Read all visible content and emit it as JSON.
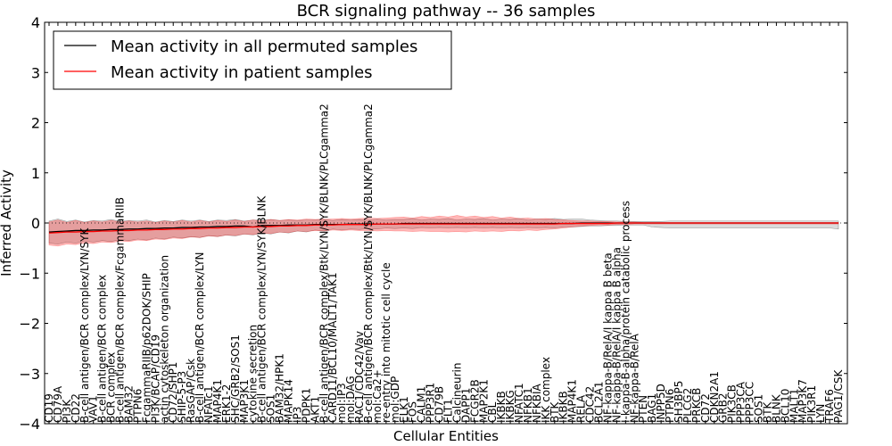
{
  "chart_data": {
    "type": "line",
    "title": "BCR signaling pathway -- 36 samples",
    "xlabel": "Cellular Entities",
    "ylabel": "Inferred Activity",
    "ylim": [
      -4,
      4
    ],
    "yticks": [
      -4,
      -3,
      -2,
      -1,
      0,
      1,
      2,
      3,
      4
    ],
    "legend_position": "top-left",
    "legend": [
      {
        "label": "Mean activity in all permuted samples",
        "color": "#000000"
      },
      {
        "label": "Mean activity in patient samples",
        "color": "#ff0000"
      }
    ],
    "categories": [
      "CD19",
      "CD79A",
      "PI3K",
      "CD22",
      "B-cell antigen/BCR complex/LYN/SYK",
      "VAV1",
      "B-cell antigen/BCR complex",
      "BCR complex",
      "B-cell antigen/BCR complex/FcgammaRIIB",
      "BAM32",
      "PTPN6",
      "FcgammaRIIB/p62DOK/SHIP",
      "PI3K/BCAP/CD19",
      "actin cytoskeleton organization",
      "CD72/SHP1",
      "SHIP-5-P3",
      "RasGAP/Csk",
      "B-cell antigen/BCR complex/LYN",
      "NFATc1",
      "MAP4K1",
      "ERK1-2",
      "SHC/GRB2/SOS1",
      "MAP3K1",
      "cytokine secretion",
      "B-cell antigen/BCR complex/LYN/SYK/BLNK",
      "SOS1",
      "BAM32/HPK1",
      "MAPK14",
      "IP3",
      "PDPK1",
      "AKT1",
      "B-cell antigen/BCR complex/Btk/LYN/SYK/BLNK/PLCgamma2",
      "CARD11/BCL10/MALT1/TAK1",
      "mol:IP3",
      "mol:DAG",
      "RAC1/CDC42/Vav",
      "B-cell antigen/BCR complex/Btk/LYN/SYK/BLNK/PLCgamma2",
      "mol:Ca2+",
      "re-entry into mitotic cell cycle",
      "mol:GDP",
      "ELK1",
      "FOS",
      "CALM1",
      "PPP3R1",
      "CD79B",
      "FLT1",
      "Calcineurin",
      "DAPP1",
      "FCGR2B",
      "MAP2K1",
      "CBL",
      "IKBKB",
      "IKBKG",
      "NFATC1",
      "NFKB1",
      "NFKBIA",
      "IKK complex",
      "BTK",
      "IKBKB",
      "MAP4K1",
      "RELA",
      "CDC42",
      "BCL2A1",
      "NF-kappa-B/RelA/I kappa B beta",
      "NF-kappa-B/RelA/I kappa B alpha",
      "I-kappa-B-alpha/protein catabolic process",
      "NF-kappa-B/RelA",
      "PTEN",
      "BAG1",
      "INPP5D",
      "PTPN6",
      "SH3BP5",
      "PLCG2",
      "PRKCB",
      "CD72",
      "CDKN2A1",
      "GRB2",
      "PIK3CB",
      "PPP3CA",
      "PPP3CC",
      "SOS1",
      "BTK",
      "BLNK",
      "BCL10",
      "MALT1",
      "MAP3K7",
      "PIK3R1",
      "LYN",
      "TRAF6",
      "PAG1/CSK"
    ],
    "series": [
      {
        "name": "Mean activity in all permuted samples",
        "color": "#000000",
        "values": [
          -0.18,
          -0.17,
          -0.16,
          -0.15,
          -0.15,
          -0.14,
          -0.14,
          -0.13,
          -0.13,
          -0.12,
          -0.12,
          -0.11,
          -0.11,
          -0.1,
          -0.1,
          -0.09,
          -0.09,
          -0.08,
          -0.08,
          -0.07,
          -0.07,
          -0.06,
          -0.06,
          -0.08,
          -0.05,
          -0.05,
          -0.05,
          -0.04,
          -0.04,
          -0.04,
          -0.03,
          -0.03,
          -0.03,
          -0.03,
          -0.02,
          -0.02,
          -0.02,
          -0.02,
          -0.02,
          -0.02,
          -0.01,
          -0.01,
          -0.01,
          -0.01,
          -0.01,
          -0.01,
          -0.01,
          -0.01,
          -0.01,
          -0.01,
          -0.01,
          -0.01,
          -0.01,
          -0.01,
          -0.01,
          -0.01,
          -0.01,
          -0.01,
          -0.01,
          -0.01,
          0.0,
          0.0,
          0.0,
          0.0,
          0.0,
          0.0,
          0.0,
          0.0,
          0.0,
          0.0,
          0.0,
          0.0,
          0.0,
          0.0,
          0.0,
          0.0,
          0.0,
          0.0,
          0.0,
          0.0,
          0.0,
          0.0,
          0.0,
          0.0,
          0.0,
          0.0,
          0.0,
          0.0,
          0.0,
          0.0
        ],
        "upper": [
          0.04,
          0.08,
          0.03,
          0.06,
          0.02,
          0.05,
          0.04,
          0.07,
          0.03,
          0.05,
          0.04,
          0.06,
          0.02,
          0.05,
          0.03,
          0.06,
          0.04,
          0.06,
          0.03,
          0.06,
          0.05,
          0.07,
          0.04,
          0.06,
          0.05,
          0.07,
          0.05,
          0.06,
          0.05,
          0.06,
          0.06,
          0.07,
          0.05,
          0.07,
          0.06,
          0.07,
          0.06,
          0.08,
          0.06,
          0.07,
          0.07,
          0.09,
          0.06,
          0.08,
          0.07,
          0.09,
          0.06,
          0.08,
          0.07,
          0.09,
          0.06,
          0.08,
          0.07,
          0.09,
          0.06,
          0.08,
          0.07,
          0.09,
          0.07,
          0.08,
          0.08,
          0.06,
          0.05,
          0.04,
          0.04,
          0.03,
          0.03,
          0.03,
          0.03,
          0.03,
          0.04,
          0.04,
          0.04,
          0.04,
          0.04,
          0.04,
          0.04,
          0.04,
          0.04,
          0.04,
          0.04,
          0.04,
          0.04,
          0.04,
          0.04,
          0.04,
          0.04,
          0.04,
          0.04,
          0.04
        ],
        "lower": [
          -0.4,
          -0.42,
          -0.38,
          -0.4,
          -0.36,
          -0.38,
          -0.35,
          -0.37,
          -0.33,
          -0.35,
          -0.32,
          -0.34,
          -0.3,
          -0.32,
          -0.28,
          -0.3,
          -0.27,
          -0.29,
          -0.25,
          -0.27,
          -0.24,
          -0.26,
          -0.22,
          -0.24,
          -0.2,
          -0.22,
          -0.18,
          -0.2,
          -0.16,
          -0.18,
          -0.14,
          -0.16,
          -0.12,
          -0.14,
          -0.12,
          -0.13,
          -0.11,
          -0.12,
          -0.1,
          -0.11,
          -0.1,
          -0.11,
          -0.09,
          -0.1,
          -0.09,
          -0.1,
          -0.09,
          -0.1,
          -0.09,
          -0.1,
          -0.09,
          -0.1,
          -0.09,
          -0.1,
          -0.09,
          -0.1,
          -0.09,
          -0.1,
          -0.08,
          -0.08,
          -0.07,
          -0.06,
          -0.06,
          -0.05,
          -0.05,
          -0.04,
          -0.04,
          -0.04,
          -0.08,
          -0.09,
          -0.1,
          -0.1,
          -0.1,
          -0.1,
          -0.1,
          -0.1,
          -0.1,
          -0.1,
          -0.1,
          -0.1,
          -0.1,
          -0.1,
          -0.1,
          -0.1,
          -0.1,
          -0.1,
          -0.1,
          -0.1,
          -0.1,
          -0.12
        ]
      },
      {
        "name": "Mean activity in patient samples",
        "color": "#ff0000",
        "values": [
          -0.2,
          -0.19,
          -0.18,
          -0.18,
          -0.17,
          -0.17,
          -0.16,
          -0.16,
          -0.15,
          -0.15,
          -0.14,
          -0.14,
          -0.13,
          -0.13,
          -0.12,
          -0.12,
          -0.11,
          -0.11,
          -0.1,
          -0.1,
          -0.09,
          -0.09,
          -0.08,
          -0.08,
          -0.07,
          -0.07,
          -0.06,
          -0.06,
          -0.05,
          -0.05,
          -0.04,
          -0.04,
          -0.04,
          -0.03,
          -0.03,
          -0.03,
          -0.03,
          -0.02,
          -0.02,
          -0.02,
          -0.02,
          -0.02,
          -0.02,
          -0.02,
          -0.02,
          -0.02,
          -0.02,
          -0.02,
          -0.02,
          -0.02,
          -0.02,
          -0.02,
          -0.02,
          -0.02,
          -0.02,
          -0.02,
          -0.02,
          -0.02,
          -0.01,
          -0.01,
          -0.01,
          -0.01,
          -0.01,
          -0.01,
          0.0,
          0.0,
          0.0,
          0.0,
          0.0,
          0.0,
          0.0,
          0.0,
          0.0,
          0.0,
          0.0,
          0.0,
          0.0,
          0.0,
          0.0,
          0.0,
          0.0,
          0.0,
          0.0,
          0.0,
          0.0,
          0.0,
          0.0,
          0.0,
          0.0,
          0.0
        ],
        "upper": [
          0.02,
          0.06,
          0.01,
          0.05,
          0.01,
          0.04,
          0.02,
          0.05,
          0.02,
          0.04,
          0.02,
          0.04,
          0.01,
          0.04,
          0.02,
          0.05,
          0.02,
          0.05,
          0.02,
          0.05,
          0.03,
          0.06,
          0.03,
          0.06,
          0.04,
          0.07,
          0.05,
          0.07,
          0.06,
          0.08,
          0.07,
          0.08,
          0.08,
          0.09,
          0.08,
          0.09,
          0.1,
          0.09,
          0.1,
          0.11,
          0.12,
          0.1,
          0.13,
          0.11,
          0.14,
          0.12,
          0.15,
          0.12,
          0.14,
          0.11,
          0.13,
          0.1,
          0.12,
          0.09,
          0.1,
          0.08,
          0.09,
          0.07,
          0.06,
          0.05,
          0.04,
          0.04,
          0.03,
          0.03,
          0.02,
          0.02,
          0.02,
          0.01,
          0.01,
          0.01,
          0.01,
          0.01,
          0.01,
          0.01,
          0.01,
          0.01,
          0.01,
          0.01,
          0.01,
          0.01,
          0.01,
          0.01,
          0.01,
          0.01,
          0.01,
          0.01,
          0.01,
          0.01,
          0.01,
          0.01
        ],
        "lower": [
          -0.44,
          -0.46,
          -0.42,
          -0.43,
          -0.4,
          -0.41,
          -0.38,
          -0.39,
          -0.36,
          -0.37,
          -0.34,
          -0.35,
          -0.32,
          -0.33,
          -0.3,
          -0.31,
          -0.28,
          -0.29,
          -0.26,
          -0.27,
          -0.24,
          -0.25,
          -0.22,
          -0.23,
          -0.2,
          -0.21,
          -0.18,
          -0.19,
          -0.16,
          -0.17,
          -0.15,
          -0.16,
          -0.14,
          -0.15,
          -0.14,
          -0.15,
          -0.15,
          -0.16,
          -0.15,
          -0.16,
          -0.16,
          -0.17,
          -0.16,
          -0.17,
          -0.17,
          -0.18,
          -0.17,
          -0.18,
          -0.16,
          -0.17,
          -0.16,
          -0.17,
          -0.15,
          -0.16,
          -0.14,
          -0.15,
          -0.13,
          -0.12,
          -0.1,
          -0.08,
          -0.06,
          -0.05,
          -0.04,
          -0.04,
          -0.03,
          -0.03,
          -0.02,
          -0.02,
          -0.02,
          -0.02,
          -0.02,
          -0.02,
          -0.02,
          -0.02,
          -0.02,
          -0.02,
          -0.02,
          -0.02,
          -0.02,
          -0.02,
          -0.02,
          -0.02,
          -0.02,
          -0.02,
          -0.02,
          -0.02,
          -0.02,
          -0.02,
          -0.02,
          -0.02
        ]
      }
    ]
  }
}
